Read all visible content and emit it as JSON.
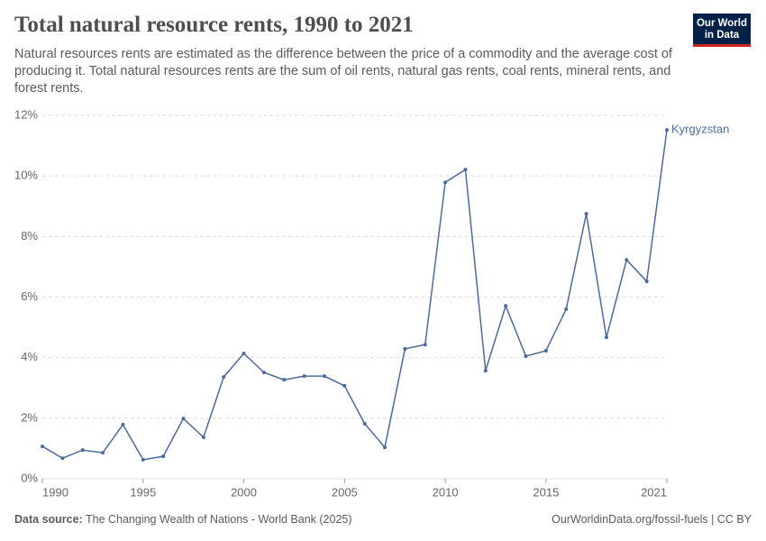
{
  "logo": [
    "Our World",
    "in Data"
  ],
  "chart_data": {
    "type": "line",
    "title": "Total natural resource rents, 1990 to 2021",
    "subtitle": "Natural resources rents are estimated as the difference between the price of a commodity and the average cost of producing it. Total natural resources rents are the sum of oil rents, natural gas rents, coal rents, mineral rents, and forest rents.",
    "x": [
      1990,
      1991,
      1992,
      1993,
      1994,
      1995,
      1996,
      1997,
      1998,
      1999,
      2000,
      2001,
      2002,
      2003,
      2004,
      2005,
      2006,
      2007,
      2008,
      2009,
      2010,
      2011,
      2012,
      2013,
      2014,
      2015,
      2016,
      2017,
      2018,
      2019,
      2020,
      2021
    ],
    "series": [
      {
        "name": "Kyrgyzstan",
        "color": "#4c6a9c",
        "values": [
          1.07,
          0.68,
          0.95,
          0.86,
          1.79,
          0.63,
          0.74,
          1.99,
          1.37,
          3.36,
          4.14,
          3.51,
          3.27,
          3.39,
          3.39,
          3.07,
          1.82,
          1.04,
          4.29,
          4.43,
          9.79,
          10.21,
          3.57,
          5.71,
          4.05,
          4.23,
          5.6,
          8.75,
          4.67,
          7.23,
          6.52,
          11.52
        ]
      }
    ],
    "xlim": [
      1990,
      2021
    ],
    "xticks": [
      1990,
      1995,
      2000,
      2005,
      2010,
      2015,
      2021
    ],
    "ylim": [
      0,
      12
    ],
    "yticks": [
      {
        "value": 0,
        "label": "0%"
      },
      {
        "value": 2,
        "label": "2%"
      },
      {
        "value": 4,
        "label": "4%"
      },
      {
        "value": 6,
        "label": "6%"
      },
      {
        "value": 8,
        "label": "8%"
      },
      {
        "value": 10,
        "label": "10%"
      },
      {
        "value": 12,
        "label": "12%"
      }
    ],
    "grid": true,
    "source_label": "Data source:",
    "source": "The Changing Wealth of Nations - World Bank (2025)",
    "url": "OurWorldinData.org/fossil-fuels | CC BY"
  }
}
